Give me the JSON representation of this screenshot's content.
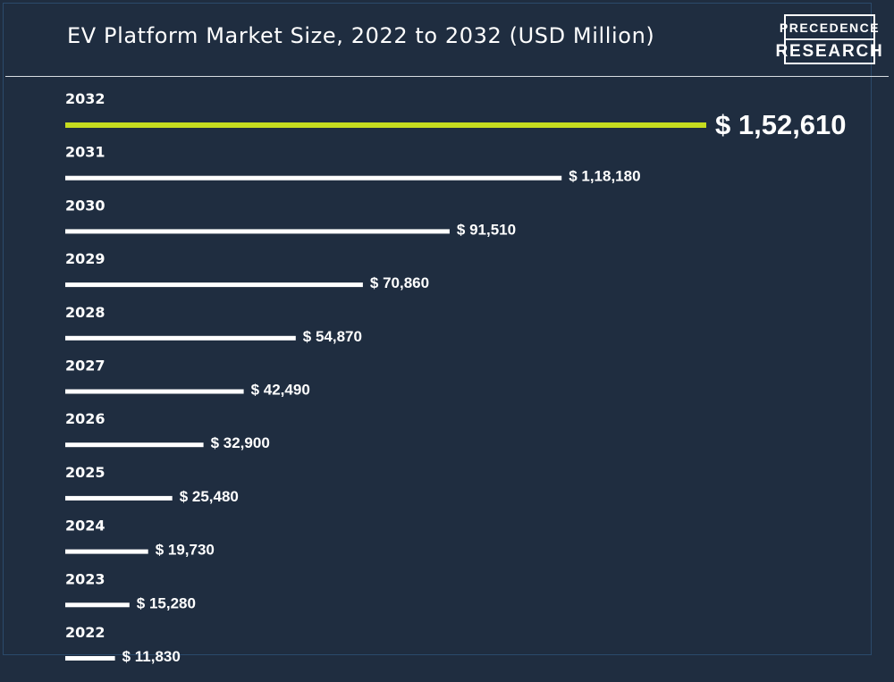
{
  "header": {
    "title": "EV Platform Market Size, 2022 to 2032 (USD Million)",
    "logo": {
      "line1": "PRECEDENCE",
      "line2": "RESEARCH"
    }
  },
  "colors": {
    "background": "#1f2d40",
    "bar": "#ffffff",
    "highlight_bar": "#c6dc1f",
    "text": "#ffffff"
  },
  "chart_data": {
    "type": "bar",
    "orientation": "horizontal",
    "title": "EV Platform Market Size, 2022 to 2032 (USD Million)",
    "categories": [
      "2032",
      "2031",
      "2030",
      "2029",
      "2028",
      "2027",
      "2026",
      "2025",
      "2024",
      "2023",
      "2022"
    ],
    "values": [
      152610,
      118180,
      91510,
      70860,
      54870,
      42490,
      32900,
      25480,
      19730,
      15280,
      11830
    ],
    "value_labels": [
      "$ 1,52,610",
      "$ 1,18,180",
      "$ 91,510",
      "$ 70,860",
      "$ 54,870",
      "$ 42,490",
      "$ 32,900",
      "$ 25,480",
      "$ 19,730",
      "$ 15,280",
      "$ 11,830"
    ],
    "highlight_category": "2032",
    "grid": false,
    "legend": "none"
  }
}
